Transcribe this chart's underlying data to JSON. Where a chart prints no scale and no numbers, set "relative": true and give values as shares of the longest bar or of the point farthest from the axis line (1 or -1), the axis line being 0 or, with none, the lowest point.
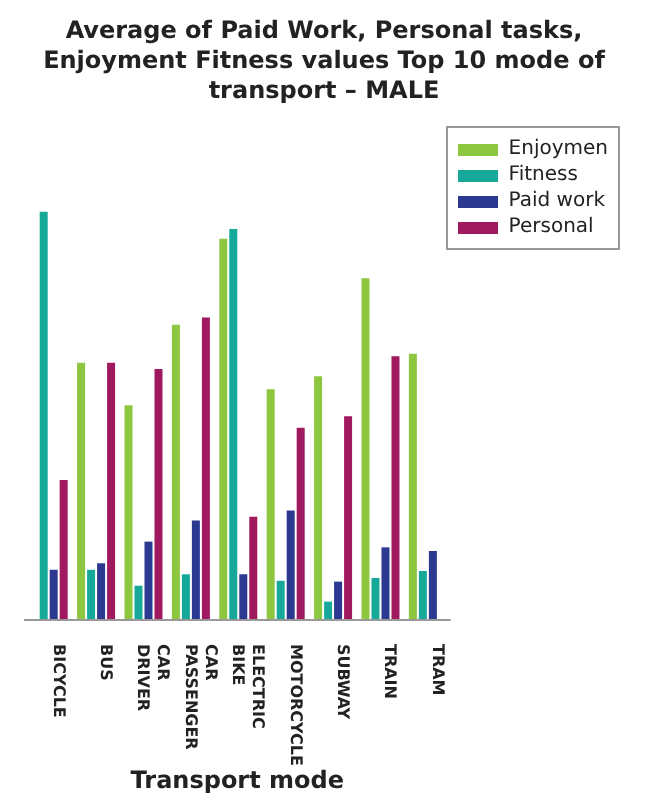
{
  "chart_data": {
    "type": "bar",
    "title": "Average of Paid Work, Personal tasks, Enjoyment Fitness values Top 10 mode of transport – MALE",
    "xlabel": "Transport mode",
    "relative": true,
    "legend": "top right",
    "categories": [
      "BICYCLE",
      "BUS",
      "CAR DRIVER",
      "CAR PASSENGER",
      "ELECTRIC BIKE",
      "MOTORCYCLE",
      "SUBWAY",
      "TRAIN",
      "TRAM"
    ],
    "series": [
      {
        "name": "Enjoymen",
        "color": "#8dc63f",
        "values": [
          null,
          0.63,
          0.526,
          0.723,
          0.934,
          0.565,
          0.597,
          0.837,
          0.652
        ]
      },
      {
        "name": "Fitness",
        "color": "#16a99a",
        "values": [
          1,
          0.123,
          0.084,
          0.112,
          0.958,
          0.096,
          0.045,
          0.103,
          0.12
        ]
      },
      {
        "name": "Paid work",
        "color": "#2b3990",
        "values": [
          0.123,
          0.139,
          0.192,
          0.244,
          0.112,
          0.268,
          0.094,
          0.178,
          0.169
        ]
      },
      {
        "name": "Personal",
        "color": "#a0195e",
        "values": [
          0.343,
          0.63,
          0.615,
          0.741,
          0.253,
          0.471,
          0.499,
          0.646,
          null
        ]
      }
    ]
  }
}
